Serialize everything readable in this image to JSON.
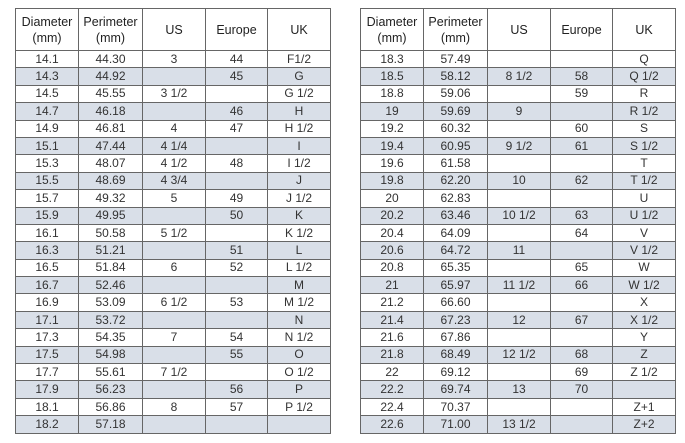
{
  "tables": [
    {
      "header": [
        "Diameter (mm)",
        "Perimeter (mm)",
        "US",
        "Europe",
        "UK"
      ],
      "rows": [
        [
          "14.1",
          "44.30",
          "3",
          "44",
          "F1/2"
        ],
        [
          "14.3",
          "44.92",
          null,
          "45",
          "G"
        ],
        [
          "14.5",
          "45.55",
          "3 1/2",
          null,
          "G 1/2"
        ],
        [
          "14.7",
          "46.18",
          null,
          "46",
          "H"
        ],
        [
          "14.9",
          "46.81",
          "4",
          "47",
          "H 1/2"
        ],
        [
          "15.1",
          "47.44",
          "4 1/4",
          null,
          "I"
        ],
        [
          "15.3",
          "48.07",
          "4 1/2",
          "48",
          "I 1/2"
        ],
        [
          "15.5",
          "48.69",
          "4 3/4",
          null,
          "J"
        ],
        [
          "15.7",
          "49.32",
          "5",
          "49",
          "J 1/2"
        ],
        [
          "15.9",
          "49.95",
          null,
          "50",
          "K"
        ],
        [
          "16.1",
          "50.58",
          "5 1/2",
          null,
          "K 1/2"
        ],
        [
          "16.3",
          "51.21",
          null,
          "51",
          "L"
        ],
        [
          "16.5",
          "51.84",
          "6",
          "52",
          "L 1/2"
        ],
        [
          "16.7",
          "52.46",
          null,
          null,
          "M"
        ],
        [
          "16.9",
          "53.09",
          "6 1/2",
          "53",
          "M 1/2"
        ],
        [
          "17.1",
          "53.72",
          null,
          null,
          "N"
        ],
        [
          "17.3",
          "54.35",
          "7",
          "54",
          "N 1/2"
        ],
        [
          "17.5",
          "54.98",
          null,
          "55",
          "O"
        ],
        [
          "17.7",
          "55.61",
          "7 1/2",
          null,
          "O 1/2"
        ],
        [
          "17.9",
          "56.23",
          null,
          "56",
          "P"
        ],
        [
          "18.1",
          "56.86",
          "8",
          "57",
          "P 1/2"
        ],
        [
          "18.2",
          "57.18",
          null,
          null,
          null
        ]
      ]
    },
    {
      "header": [
        "Diameter (mm)",
        "Perimeter (mm)",
        "US",
        "Europe",
        "UK"
      ],
      "rows": [
        [
          "18.3",
          "57.49",
          null,
          null,
          "Q"
        ],
        [
          "18.5",
          "58.12",
          "8 1/2",
          "58",
          "Q 1/2"
        ],
        [
          "18.8",
          "59.06",
          null,
          "59",
          "R"
        ],
        [
          "19",
          "59.69",
          "9",
          null,
          "R 1/2"
        ],
        [
          "19.2",
          "60.32",
          null,
          "60",
          "S"
        ],
        [
          "19.4",
          "60.95",
          "9 1/2",
          "61",
          "S 1/2"
        ],
        [
          "19.6",
          "61.58",
          null,
          null,
          "T"
        ],
        [
          "19.8",
          "62.20",
          "10",
          "62",
          "T 1/2"
        ],
        [
          "20",
          "62.83",
          null,
          null,
          "U"
        ],
        [
          "20.2",
          "63.46",
          "10 1/2",
          "63",
          "U 1/2"
        ],
        [
          "20.4",
          "64.09",
          null,
          "64",
          "V"
        ],
        [
          "20.6",
          "64.72",
          "11",
          null,
          "V 1/2"
        ],
        [
          "20.8",
          "65.35",
          null,
          "65",
          "W"
        ],
        [
          "21",
          "65.97",
          "11 1/2",
          "66",
          "W 1/2"
        ],
        [
          "21.2",
          "66.60",
          null,
          null,
          "X"
        ],
        [
          "21.4",
          "67.23",
          "12",
          "67",
          "X 1/2"
        ],
        [
          "21.6",
          "67.86",
          null,
          null,
          "Y"
        ],
        [
          "21.8",
          "68.49",
          "12 1/2",
          "68",
          "Z"
        ],
        [
          "22",
          "69.12",
          null,
          "69",
          "Z 1/2"
        ],
        [
          "22.2",
          "69.74",
          "13",
          "70",
          null
        ],
        [
          "22.4",
          "70.37",
          null,
          null,
          "Z+1"
        ],
        [
          "22.6",
          "71.00",
          "13 1/2",
          null,
          "Z+2"
        ]
      ]
    }
  ]
}
